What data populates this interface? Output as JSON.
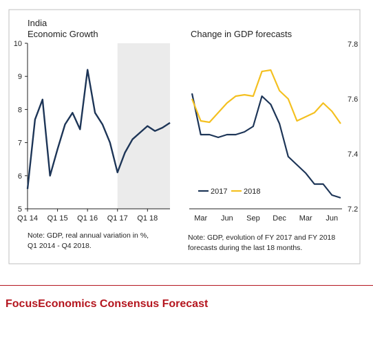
{
  "colors": {
    "line_2017": "#1d3557",
    "line_2018": "#f4c020",
    "forecast_shade": "#ebebeb",
    "brand": "#b4151e",
    "axis": "#222222",
    "panel_border": "#bfbfbf"
  },
  "chart_data": [
    {
      "type": "line",
      "title": "India\nEconomic Growth",
      "title_lines": [
        "India",
        "Economic Growth"
      ],
      "xlabel": "",
      "ylabel": "",
      "ylim": [
        5,
        10
      ],
      "yticks": [
        5,
        6,
        7,
        8,
        9,
        10
      ],
      "grid": false,
      "x_tick_labels": [
        "Q1 14",
        "Q1 15",
        "Q1 16",
        "Q1 17",
        "Q1 18"
      ],
      "x": [
        "Q1 14",
        "Q2 14",
        "Q3 14",
        "Q4 14",
        "Q1 15",
        "Q2 15",
        "Q3 15",
        "Q4 15",
        "Q1 16",
        "Q2 16",
        "Q3 16",
        "Q4 16",
        "Q1 17",
        "Q2 17",
        "Q3 17",
        "Q4 17",
        "Q1 18",
        "Q2 18",
        "Q3 18",
        "Q4 18"
      ],
      "series": [
        {
          "values": [
            5.6,
            7.7,
            8.3,
            6.0,
            6.8,
            7.55,
            7.9,
            7.4,
            9.2,
            7.9,
            7.55,
            7.0,
            6.1,
            6.7,
            7.1,
            7.3,
            7.5,
            7.35,
            7.45,
            7.6
          ]
        }
      ],
      "shaded_region": {
        "from": "Q1 17",
        "to": "Q4 18",
        "meaning": "forecast period"
      },
      "note": [
        "Note: GDP, real annual variation in %,",
        "Q1 2014 - Q4 2018."
      ]
    },
    {
      "type": "line",
      "title": "Change in GDP forecasts",
      "xlabel": "",
      "ylabel": "",
      "ylim": [
        7.2,
        7.8
      ],
      "yticks": [
        7.2,
        7.4,
        7.6,
        7.8
      ],
      "y_axis_side": "right",
      "grid": false,
      "legend_position": "bottom-left",
      "x": [
        "Feb",
        "Mar",
        "Apr",
        "May",
        "Jun",
        "Jul",
        "Aug",
        "Sep",
        "Oct",
        "Nov",
        "Dec",
        "Jan",
        "Feb",
        "Mar",
        "Apr",
        "May",
        "Jun",
        "Jul"
      ],
      "x_tick_labels": [
        "Mar",
        "Jun",
        "Sep",
        "Dec",
        "Mar",
        "Jun"
      ],
      "series": [
        {
          "name": "2017",
          "values": [
            7.62,
            7.47,
            7.47,
            7.46,
            7.47,
            7.47,
            7.48,
            7.5,
            7.61,
            7.58,
            7.51,
            7.39,
            7.36,
            7.33,
            7.29,
            7.29,
            7.25,
            7.24
          ]
        },
        {
          "name": "2018",
          "values": [
            7.6,
            7.52,
            7.515,
            7.55,
            7.585,
            7.61,
            7.615,
            7.61,
            7.7,
            7.705,
            7.63,
            7.6,
            7.52,
            7.535,
            7.55,
            7.585,
            7.555,
            7.51
          ]
        }
      ],
      "note": [
        "Note: GDP, evolution of FY 2017 and FY 2018",
        "forecasts during the last 18 months."
      ]
    }
  ],
  "footer": {
    "brand": "FocusEconomics Consensus Forecast"
  }
}
